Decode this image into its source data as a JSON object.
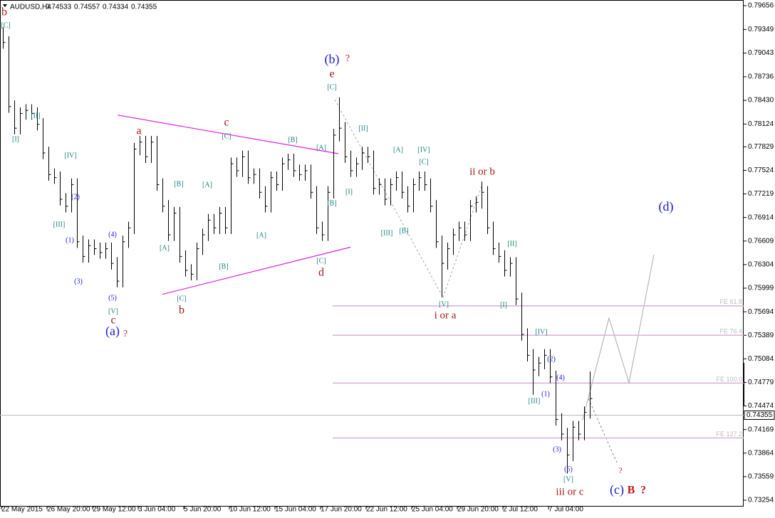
{
  "header": {
    "symbol": "AUDUSD,H4",
    "open": 0.74533,
    "high": 0.74557,
    "low": 0.74334,
    "close": 0.74355
  },
  "chart_data": {
    "type": "ohlc",
    "categories": [
      "22 May 2015",
      null,
      null,
      null,
      null,
      null,
      null,
      null,
      "26 May 20:00",
      null,
      null,
      null,
      null,
      null,
      null,
      null,
      "29 May 12:00",
      null,
      null,
      null,
      null,
      null,
      null,
      null,
      "3 Jun 04:00",
      null,
      null,
      null,
      null,
      null,
      null,
      null,
      "5 Jun 20:00",
      null,
      null,
      null,
      null,
      null,
      null,
      null,
      "10 Jun 12:00",
      null,
      null,
      null,
      null,
      null,
      null,
      null,
      "15 Jun 04:00",
      null,
      null,
      null,
      null,
      null,
      null,
      null,
      "17 Jun 20:00",
      null,
      null,
      null,
      null,
      null,
      null,
      null,
      "22 Jun 12:00",
      null,
      null,
      null,
      null,
      null,
      null,
      null,
      "25 Jun 04:00",
      null,
      null,
      null,
      null,
      null,
      null,
      null,
      "29 Jun 20:00",
      null,
      null,
      null,
      null,
      null,
      null,
      null,
      "2 Jul 12:00",
      null,
      null,
      null,
      null,
      null,
      null,
      null,
      "7 Jul 04:00",
      null,
      null,
      null,
      null,
      null,
      null,
      null
    ],
    "high": [
      0.7938,
      0.7926,
      0.7843,
      0.7834,
      0.7838,
      0.7838,
      0.7834,
      0.782,
      0.7783,
      0.7755,
      0.7751,
      0.7723,
      0.7742,
      0.7742,
      0.7668,
      0.7663,
      0.7663,
      0.7659,
      0.7659,
      0.7659,
      0.764,
      0.7668,
      0.7686,
      0.7788,
      0.7797,
      0.7797,
      0.7797,
      0.7797,
      0.7742,
      0.7714,
      0.7705,
      0.7705,
      0.7649,
      0.7631,
      0.7659,
      0.7677,
      0.7696,
      0.7696,
      0.7705,
      0.7705,
      0.7769,
      0.7769,
      0.7778,
      0.7778,
      0.7755,
      0.7755,
      0.7732,
      0.7751,
      0.7751,
      0.7769,
      0.7774,
      0.7774,
      0.776,
      0.776,
      0.776,
      0.7732,
      0.7686,
      0.7732,
      0.7806,
      0.7847,
      0.7815,
      0.7778,
      0.7769,
      0.7783,
      0.7783,
      0.7778,
      0.7742,
      0.7742,
      0.7742,
      0.7751,
      0.7751,
      0.7732,
      0.7742,
      0.7751,
      0.7751,
      0.7742,
      0.7714,
      0.7668,
      0.7659,
      0.7677,
      0.7686,
      0.7686,
      0.7714,
      0.7719,
      0.7738,
      0.7732,
      0.7686,
      0.7659,
      0.7649,
      0.764,
      0.764,
      0.7594,
      0.7548,
      0.7521,
      0.7511,
      0.7521,
      0.7521,
      0.7493,
      0.7438,
      0.7419,
      0.7428,
      0.7428,
      0.7447,
      0.7492
    ],
    "low": [
      0.791,
      0.7827,
      0.7799,
      0.7799,
      0.7818,
      0.7818,
      0.7804,
      0.7767,
      0.7739,
      0.7735,
      0.7707,
      0.7698,
      0.7698,
      0.7652,
      0.7633,
      0.7633,
      0.7643,
      0.7638,
      0.7638,
      0.7624,
      0.7601,
      0.7601,
      0.7652,
      0.767,
      0.7772,
      0.7762,
      0.7762,
      0.7726,
      0.7698,
      0.7661,
      0.7661,
      0.7633,
      0.7615,
      0.761,
      0.761,
      0.7643,
      0.7661,
      0.767,
      0.767,
      0.767,
      0.767,
      0.7744,
      0.7744,
      0.7735,
      0.7735,
      0.7716,
      0.7698,
      0.7698,
      0.7726,
      0.7726,
      0.7753,
      0.7744,
      0.7739,
      0.7739,
      0.7716,
      0.767,
      0.7661,
      0.7661,
      0.7716,
      0.779,
      0.7762,
      0.7744,
      0.7744,
      0.7753,
      0.7762,
      0.7721,
      0.7721,
      0.7707,
      0.7707,
      0.7726,
      0.7716,
      0.7698,
      0.7698,
      0.7726,
      0.7726,
      0.7698,
      0.7652,
      0.7588,
      0.7624,
      0.7643,
      0.7661,
      0.7661,
      0.7661,
      0.7698,
      0.7703,
      0.767,
      0.7643,
      0.7633,
      0.7615,
      0.7615,
      0.7578,
      0.7532,
      0.7505,
      0.7462,
      0.7486,
      0.7495,
      0.7477,
      0.7422,
      0.7403,
      0.736,
      0.7376,
      0.7403,
      0.7403,
      0.7431
    ],
    "close": [
      0.7918,
      0.7835,
      0.7807,
      0.7826,
      0.783,
      0.7826,
      0.7812,
      0.7775,
      0.7747,
      0.7743,
      0.7715,
      0.7706,
      0.7734,
      0.766,
      0.7641,
      0.7655,
      0.7651,
      0.7646,
      0.7651,
      0.7632,
      0.7609,
      0.766,
      0.7678,
      0.778,
      0.7789,
      0.777,
      0.7789,
      0.7734,
      0.7706,
      0.7669,
      0.7697,
      0.7641,
      0.7623,
      0.7618,
      0.7651,
      0.7669,
      0.7688,
      0.7678,
      0.7697,
      0.7678,
      0.7761,
      0.7752,
      0.777,
      0.7743,
      0.7747,
      0.7724,
      0.7706,
      0.7743,
      0.7734,
      0.7761,
      0.7766,
      0.7752,
      0.7747,
      0.7752,
      0.7724,
      0.7678,
      0.7669,
      0.7724,
      0.7798,
      0.7807,
      0.777,
      0.7752,
      0.7761,
      0.7775,
      0.777,
      0.7729,
      0.7734,
      0.7715,
      0.7734,
      0.7743,
      0.7724,
      0.7706,
      0.7734,
      0.7743,
      0.7734,
      0.7706,
      0.766,
      0.7632,
      0.7651,
      0.7669,
      0.7678,
      0.7669,
      0.7706,
      0.7711,
      0.7724,
      0.7678,
      0.7651,
      0.7641,
      0.7623,
      0.7632,
      0.7586,
      0.754,
      0.7513,
      0.7494,
      0.7503,
      0.7513,
      0.7485,
      0.743,
      0.7411,
      0.7384,
      0.742,
      0.7411,
      0.7439,
      0.7457
    ],
    "color": "#000000",
    "ylim": [
      0.73254,
      0.79656
    ],
    "yticks": [
      0.79656,
      0.79349,
      0.79043,
      0.78736,
      {
        "value": 0.7843,
        "label": "0.78430"
      },
      0.78124,
      0.77829,
      0.77524,
      0.77219,
      0.76914,
      0.76609,
      0.76304,
      0.75999,
      0.75694,
      0.75389,
      0.75084,
      0.74779,
      0.74474,
      0.74169,
      0.73864,
      0.73559,
      0.73254
    ],
    "fib_levels": [
      {
        "label": "FE 61.8",
        "value": 0.7577
      },
      {
        "label": "FE 76.4",
        "value": 0.7539
      },
      {
        "label": "FE 100.0",
        "value": 0.7477
      },
      {
        "label": "FE 127.2",
        "value": 0.7406
      }
    ],
    "fib_color": "#d8b0d8",
    "trendlines": [
      {
        "from": 0.7824,
        "to": 0.7774
      },
      {
        "from": 0.7592,
        "to": 0.7653
      }
    ],
    "trendline_color": "#e020e0",
    "annotations": [
      {
        "text": "b",
        "color": "#a01818"
      },
      {
        "text": "[C]",
        "color": "#1e7f7f"
      },
      {
        "text": "[II]",
        "color": "#1e7f7f"
      },
      {
        "text": "[I]",
        "color": "#1e7f7f"
      },
      {
        "text": "[IV]",
        "color": "#1e7f7f"
      },
      {
        "text": "(2)",
        "color": "#1a1ad0"
      },
      {
        "text": "[III]",
        "color": "#1e7f7f"
      },
      {
        "text": "(1)",
        "color": "#1a1ad0"
      },
      {
        "text": "(4)",
        "color": "#1a1ad0"
      },
      {
        "text": "(3)",
        "color": "#1a1ad0"
      },
      {
        "text": "(5)",
        "color": "#1a1ad0"
      },
      {
        "text": "[V]",
        "color": "#1e7f7f"
      },
      {
        "text": "c",
        "color": "#a01818"
      },
      {
        "text": "(a)",
        "color": "#1a1ad0"
      },
      {
        "text": "?",
        "color": "#d02020"
      },
      {
        "text": "a",
        "color": "#a01818"
      },
      {
        "text": "[B]",
        "color": "#1e7f7f"
      },
      {
        "text": "[A]",
        "color": "#1e7f7f"
      },
      {
        "text": "[A]",
        "color": "#1e7f7f"
      },
      {
        "text": "[B]",
        "color": "#1e7f7f"
      },
      {
        "text": "[C]",
        "color": "#1e7f7f"
      },
      {
        "text": "b",
        "color": "#a01818"
      },
      {
        "text": "c",
        "color": "#a01818"
      },
      {
        "text": "[C]",
        "color": "#1e7f7f"
      },
      {
        "text": "[B]",
        "color": "#1e7f7f"
      },
      {
        "text": "[A]",
        "color": "#1e7f7f"
      },
      {
        "text": "[A]",
        "color": "#1e7f7f"
      },
      {
        "text": "[B]",
        "color": "#1e7f7f"
      },
      {
        "text": "[C]",
        "color": "#1e7f7f"
      },
      {
        "text": "d",
        "color": "#a01818"
      },
      {
        "text": "(b)",
        "color": "#1a1ad0"
      },
      {
        "text": "?",
        "color": "#d02020"
      },
      {
        "text": "e",
        "color": "#a01818"
      },
      {
        "text": "[C]",
        "color": "#1e7f7f"
      },
      {
        "text": "[II]",
        "color": "#1e7f7f"
      },
      {
        "text": "[I]",
        "color": "#1e7f7f"
      },
      {
        "text": "[III]",
        "color": "#1e7f7f"
      },
      {
        "text": "[B]",
        "color": "#1e7f7f"
      },
      {
        "text": "[A]",
        "color": "#1e7f7f"
      },
      {
        "text": "[IV]",
        "color": "#1e7f7f"
      },
      {
        "text": "[C]",
        "color": "#1e7f7f"
      },
      {
        "text": "ii or b",
        "color": "#a01818"
      },
      {
        "text": "[V]",
        "color": "#1e7f7f"
      },
      {
        "text": "i or a",
        "color": "#a01818"
      },
      {
        "text": "[II]",
        "color": "#1e7f7f"
      },
      {
        "text": "[I]",
        "color": "#1e7f7f"
      },
      {
        "text": "[IV]",
        "color": "#1e7f7f"
      },
      {
        "text": "(2)",
        "color": "#1a1ad0"
      },
      {
        "text": "(4)",
        "color": "#1a1ad0"
      },
      {
        "text": "(1)",
        "color": "#1a1ad0"
      },
      {
        "text": "[III]",
        "color": "#1e7f7f"
      },
      {
        "text": "(3)",
        "color": "#1a1ad0"
      },
      {
        "text": "(5)",
        "color": "#1a1ad0"
      },
      {
        "text": "[V]",
        "color": "#1e7f7f"
      },
      {
        "text": "iii or c",
        "color": "#a01818"
      },
      {
        "text": "(c)",
        "color": "#1a1ad0"
      },
      {
        "text": "B",
        "color": "#c01818"
      },
      {
        "text": "?",
        "color": "#c01818"
      },
      {
        "text": "?",
        "color": "#d02020"
      },
      {
        "text": "(d)",
        "color": "#1a1ad0"
      }
    ]
  }
}
